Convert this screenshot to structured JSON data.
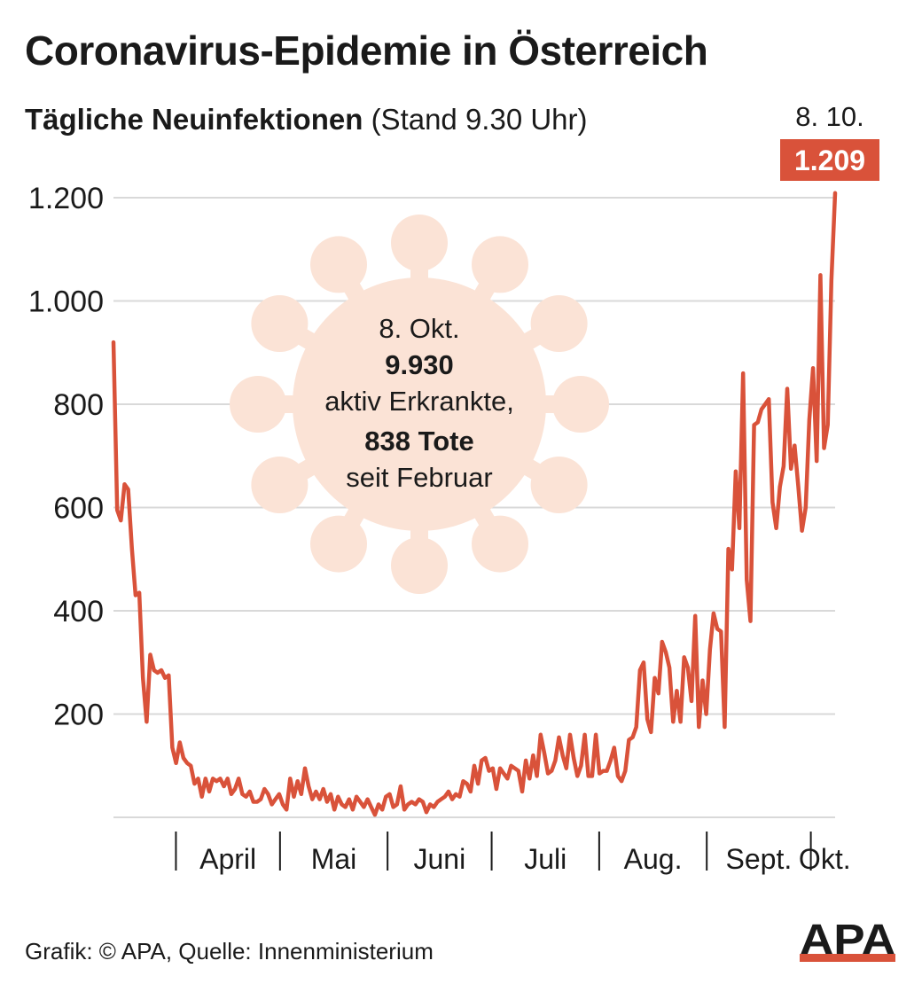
{
  "title": "Coronavirus-Epidemie in Österreich",
  "subtitle_bold": "Tägliche Neuinfektionen",
  "subtitle_rest": "(Stand 9.30 Uhr)",
  "footer": "Grafik: © APA, Quelle: Innenministerium",
  "logo_text": "APA",
  "colors": {
    "line": "#d9523a",
    "virus": "#fbe3d6",
    "grid": "#d9d9d9",
    "label_bg": "#d9523a",
    "logo_stripe": "#d9523a"
  },
  "callout": {
    "date": "8. Okt.",
    "active_value": "9.930",
    "active_label": "aktiv Erkrankte,",
    "deaths": "838 Tote",
    "since": "seit Februar"
  },
  "end_label": {
    "date": "8. 10.",
    "value": "1.209"
  },
  "chart_data": {
    "type": "line",
    "ylim": [
      0,
      1200
    ],
    "yticks": [
      200,
      400,
      600,
      800,
      1000,
      1200
    ],
    "ytick_labels": [
      "200",
      "400",
      "600",
      "800",
      "1.000",
      "1.200"
    ],
    "grid": true,
    "x_start": "2020-03-14",
    "x_end": "2020-10-08",
    "months": [
      {
        "label": "April",
        "start": "2020-04-01",
        "end": "2020-04-30"
      },
      {
        "label": "Mai",
        "start": "2020-05-01",
        "end": "2020-05-31"
      },
      {
        "label": "Juni",
        "start": "2020-06-01",
        "end": "2020-06-30"
      },
      {
        "label": "Juli",
        "start": "2020-07-01",
        "end": "2020-07-31"
      },
      {
        "label": "Aug.",
        "start": "2020-08-01",
        "end": "2020-08-31"
      },
      {
        "label": "Sept.",
        "start": "2020-09-01",
        "end": "2020-09-30"
      },
      {
        "label": "Okt.",
        "start": "2020-10-01",
        "end": "2020-10-08"
      }
    ],
    "series": [
      {
        "values": [
          920,
          595,
          575,
          645,
          635,
          520,
          430,
          435,
          270,
          185,
          315,
          285,
          280,
          285,
          270,
          275,
          135,
          105,
          145,
          115,
          105,
          100,
          65,
          75,
          40,
          75,
          50,
          75,
          70,
          75,
          60,
          75,
          45,
          55,
          75,
          45,
          40,
          50,
          30,
          30,
          35,
          55,
          45,
          25,
          35,
          45,
          25,
          15,
          75,
          40,
          70,
          45,
          95,
          60,
          35,
          50,
          35,
          55,
          30,
          45,
          15,
          40,
          25,
          20,
          35,
          15,
          40,
          30,
          20,
          35,
          20,
          5,
          25,
          15,
          40,
          45,
          20,
          25,
          60,
          15,
          25,
          30,
          25,
          35,
          30,
          10,
          25,
          20,
          30,
          35,
          40,
          50,
          35,
          45,
          40,
          70,
          65,
          50,
          100,
          65,
          110,
          115,
          90,
          95,
          55,
          95,
          85,
          75,
          100,
          95,
          90,
          50,
          110,
          75,
          120,
          80,
          160,
          125,
          85,
          90,
          110,
          155,
          120,
          95,
          160,
          115,
          80,
          100,
          160,
          80,
          80,
          160,
          85,
          90,
          90,
          110,
          135,
          80,
          70,
          90,
          150,
          155,
          175,
          285,
          300,
          190,
          165,
          270,
          240,
          340,
          320,
          290,
          185,
          245,
          185,
          310,
          290,
          225,
          390,
          175,
          265,
          200,
          325,
          395,
          365,
          360,
          175,
          520,
          480,
          670,
          560,
          860,
          460,
          380,
          760,
          765,
          790,
          800,
          810,
          610,
          560,
          640,
          680,
          830,
          675,
          720,
          640,
          555,
          600,
          770,
          870,
          690,
          1050,
          715,
          760,
          1040,
          1209
        ]
      }
    ]
  }
}
